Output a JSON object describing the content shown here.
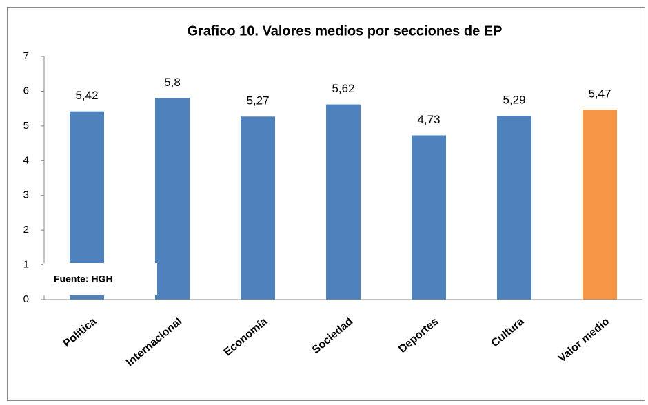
{
  "chart_data": {
    "type": "bar",
    "title": "Grafico 10. Valores medios por secciones de EP",
    "categories": [
      "Política",
      "Internacional",
      "Economía",
      "Sociedad",
      "Deportes",
      "Cultura",
      "Valor medio"
    ],
    "values": [
      5.42,
      5.8,
      5.27,
      5.62,
      4.73,
      5.29,
      5.47
    ],
    "value_labels": [
      "5,42",
      "5,8",
      "5,27",
      "5,62",
      "4,73",
      "5,29",
      "5,47"
    ],
    "colors": [
      "#4f81bd",
      "#4f81bd",
      "#4f81bd",
      "#4f81bd",
      "#4f81bd",
      "#4f81bd",
      "#f79646"
    ],
    "ylim": [
      0,
      7
    ],
    "yticks": [
      0,
      1,
      2,
      3,
      4,
      5,
      6,
      7
    ],
    "grid": false,
    "annotation": "Fuente: HGH"
  }
}
